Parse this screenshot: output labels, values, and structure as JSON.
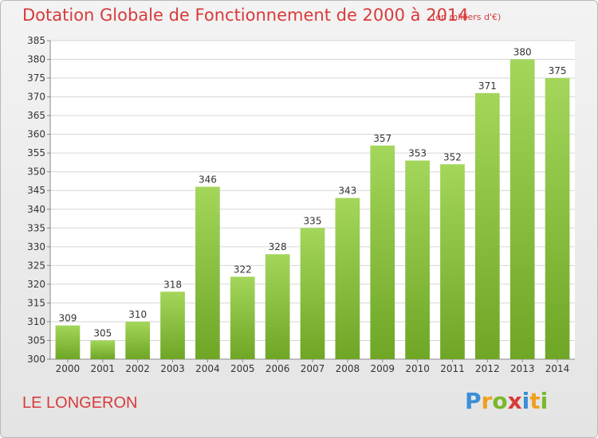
{
  "header": {
    "title": "Dotation Globale de Fonctionnement de 2000 à 2014",
    "subtitle": "(en milliers d'€)"
  },
  "footer": {
    "commune": "LE LONGERON",
    "logo_text": "Proxiti"
  },
  "colors": {
    "title": "#d83a3a",
    "bar_light": "#a3d65a",
    "bar_dark": "#6fa626",
    "logo_p": "#3b8fd6",
    "logo_r": "#f0a020",
    "logo_o": "#7ab82a",
    "logo_x": "#d83a3a",
    "logo_i": "#3b8fd6"
  },
  "chart_data": {
    "type": "bar",
    "categories": [
      "2000",
      "2001",
      "2002",
      "2003",
      "2004",
      "2005",
      "2006",
      "2007",
      "2008",
      "2009",
      "2010",
      "2011",
      "2012",
      "2013",
      "2014"
    ],
    "values": [
      309,
      305,
      310,
      318,
      346,
      322,
      328,
      335,
      343,
      357,
      353,
      352,
      371,
      380,
      375
    ],
    "title": "Dotation Globale de Fonctionnement de 2000 à 2014",
    "subtitle": "(en milliers d'€)",
    "xlabel": "",
    "ylabel": "",
    "ylim": [
      300,
      385
    ],
    "yticks": [
      300,
      305,
      310,
      315,
      320,
      325,
      330,
      335,
      340,
      345,
      350,
      355,
      360,
      365,
      370,
      375,
      380,
      385
    ],
    "grid": true
  }
}
